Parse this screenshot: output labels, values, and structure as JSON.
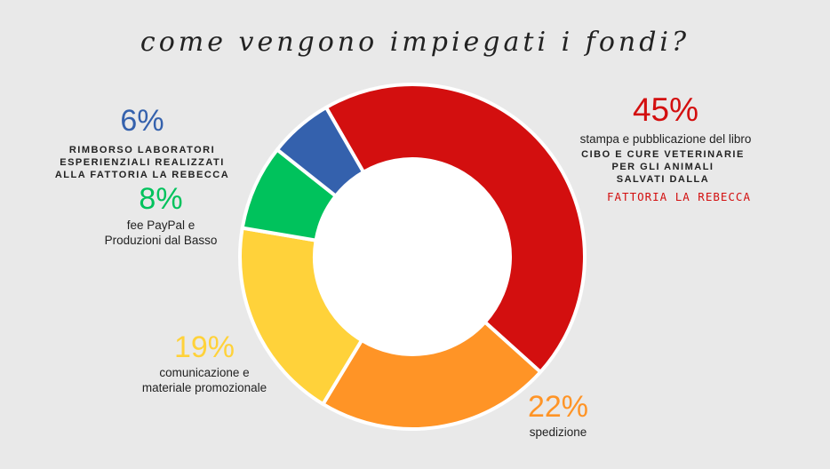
{
  "title": "come vengono impiegati i fondi?",
  "colors": {
    "background": "#e9e9e9",
    "stampa": "#d30f0f",
    "spedizione": "#ff9426",
    "comunicazione": "#ffd23a",
    "fee": "#00c25c",
    "rimborso": "#3461ad"
  },
  "chart_data": {
    "type": "pie",
    "variant": "donut",
    "categories": [
      "stampa e pubblicazione del libro",
      "spedizione",
      "comunicazione e materiale promozionale",
      "fee PayPal e Produzioni dal Basso",
      "rimborso laboratori esperienziali realizzati alla fattoria la rebecca"
    ],
    "values": [
      45,
      22,
      19,
      8,
      6
    ],
    "colors": [
      "#d30f0f",
      "#ff9426",
      "#ffd23a",
      "#00c25c",
      "#3461ad"
    ],
    "value_labels": [
      "45%",
      "22%",
      "19%",
      "8%",
      "6%"
    ]
  },
  "labels": {
    "stampa": {
      "pct": "45%",
      "text": "stampa e pubblicazione del libro",
      "extra1": "CIBO E CURE VETERINARIE",
      "extra2": "PER GLI ANIMALI",
      "extra3": "SALVATI DALLA",
      "extra4": "FATTORIA LA REBECCA"
    },
    "spedizione": {
      "pct": "22%",
      "text": "spedizione"
    },
    "comunicazione": {
      "pct": "19%",
      "line1": "comunicazione e",
      "line2": "materiale promozionale"
    },
    "fee": {
      "pct": "8%",
      "line1": "fee PayPal e",
      "line2": "Produzioni dal Basso"
    },
    "rimborso": {
      "pct": "6%",
      "line1": "RIMBORSO LABORATORI",
      "line2": "ESPERIENZIALI REALIZZATI",
      "line3": "ALLA FATTORIA LA REBECCA"
    }
  }
}
